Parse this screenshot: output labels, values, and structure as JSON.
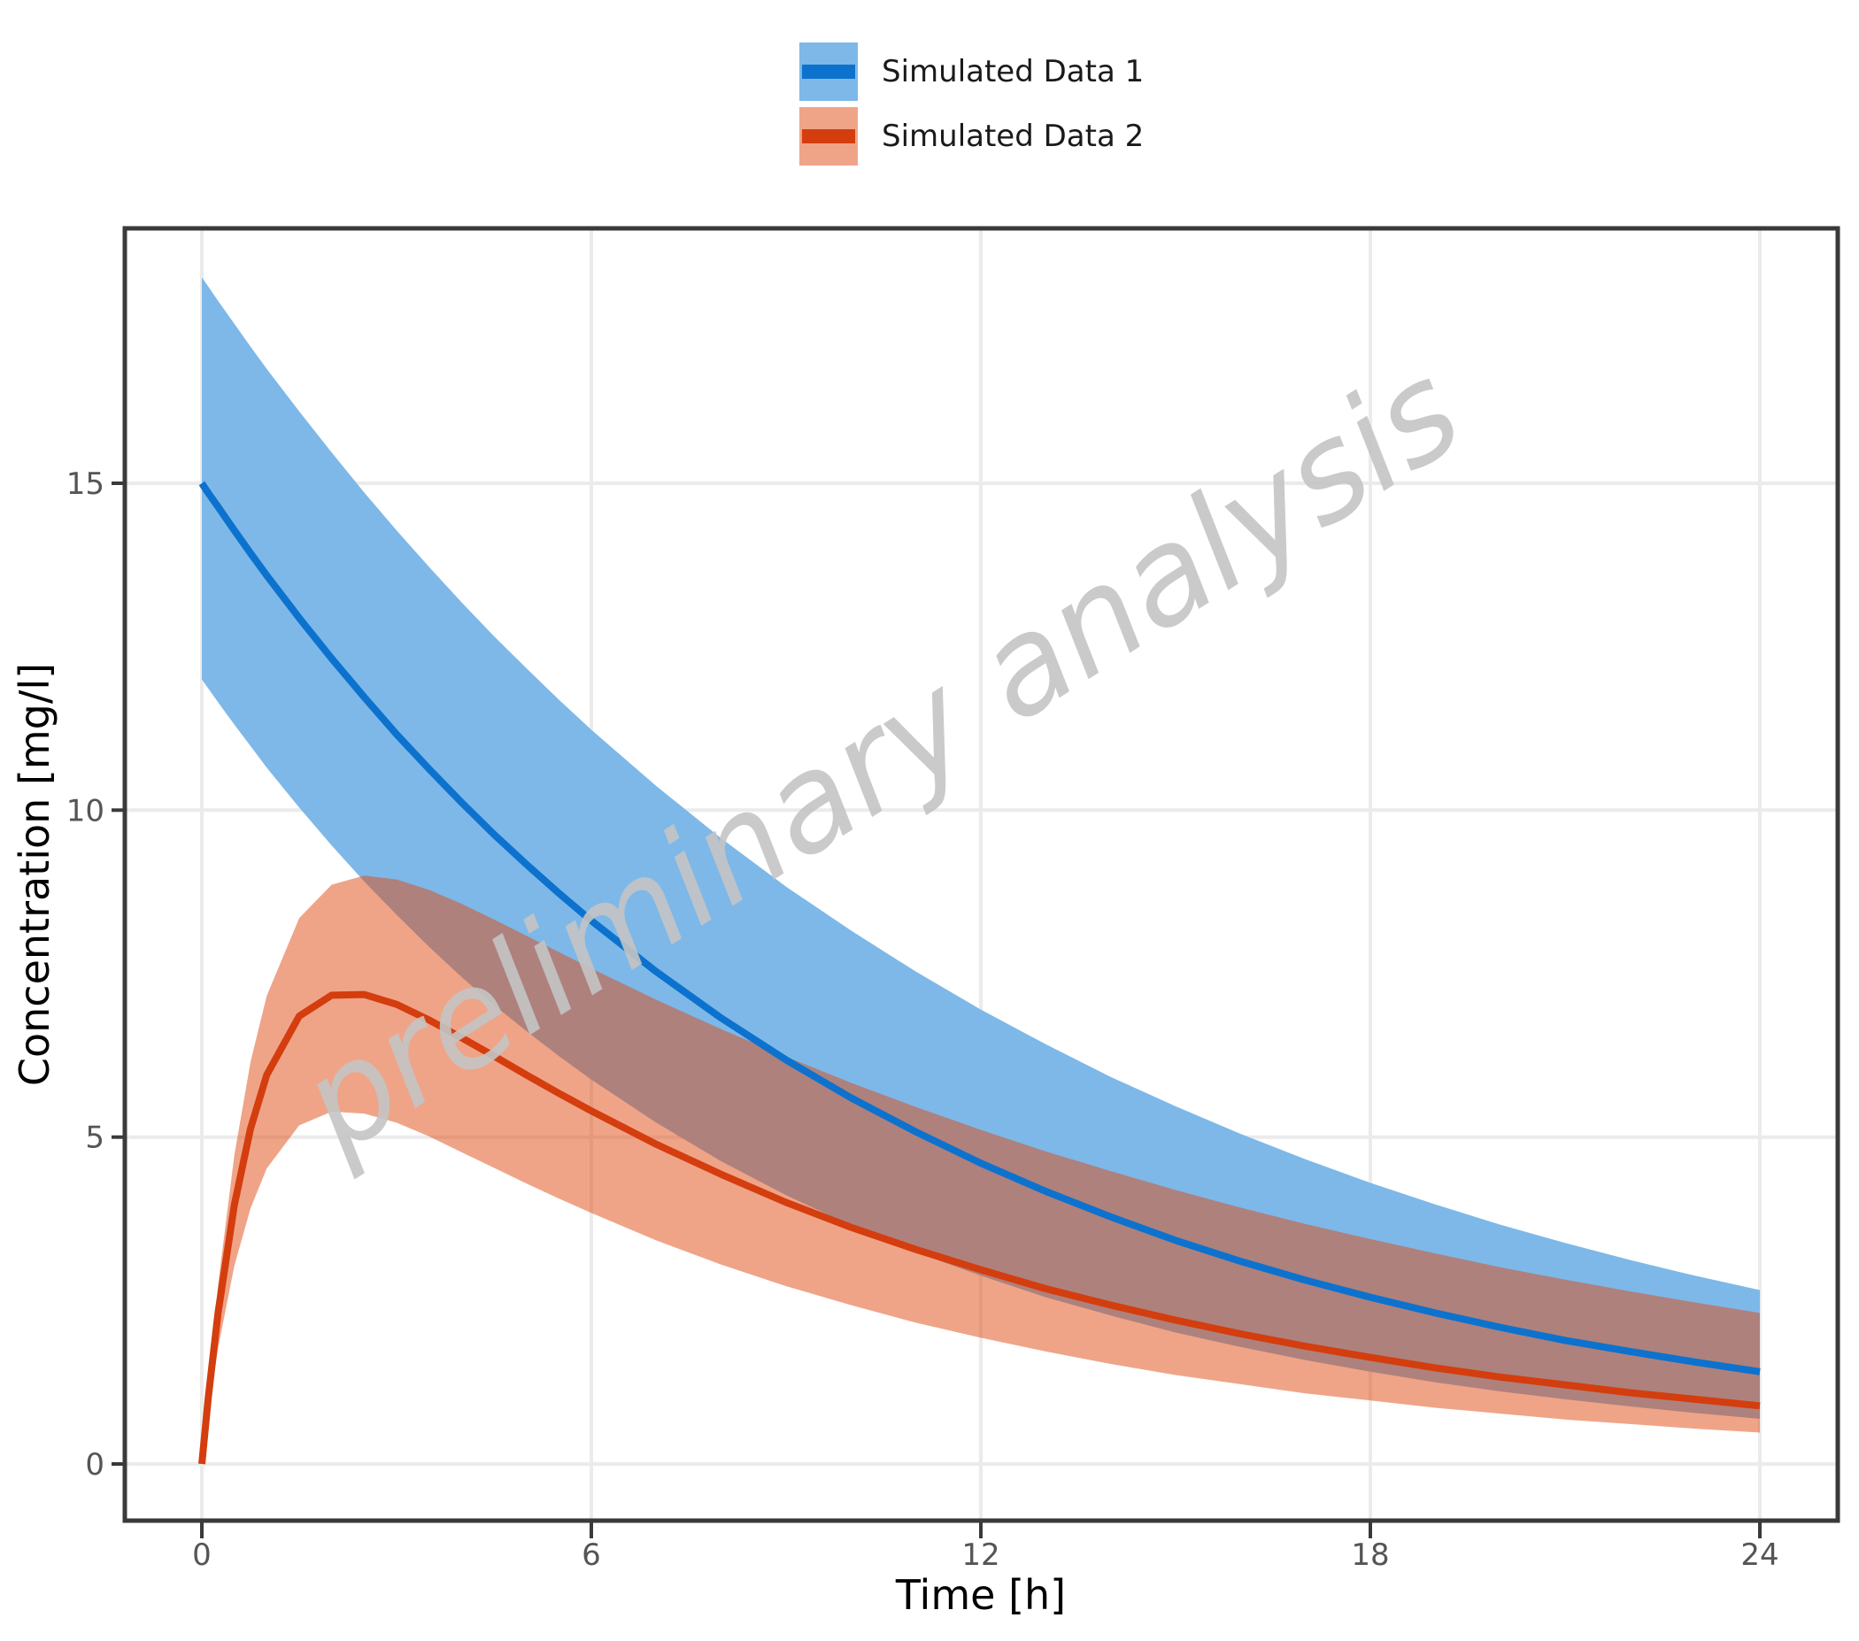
{
  "watermark": "preliminary analysis",
  "legend": {
    "items": [
      {
        "label": "Simulated Data 1",
        "line_color": "#0c72ce",
        "band_color": "#7db8e8"
      },
      {
        "label": "Simulated Data 2",
        "line_color": "#d43d0e",
        "band_color": "#efa488"
      }
    ]
  },
  "chart_data": {
    "type": "line",
    "title": "",
    "xlabel": "Time [h]",
    "ylabel": "Concentration [mg/l]",
    "x_ticks": [
      0,
      6,
      12,
      18,
      24
    ],
    "y_ticks": [
      0,
      5,
      10,
      15
    ],
    "xlim": [
      -1.2,
      25.2
    ],
    "ylim": [
      -0.9,
      18.9
    ],
    "grid": true,
    "legend_position": "top-center",
    "watermark_text": "preliminary analysis",
    "x": [
      0,
      0.1,
      0.25,
      0.5,
      0.75,
      1,
      1.5,
      2,
      2.5,
      3,
      3.5,
      4,
      4.5,
      5,
      5.5,
      6,
      7,
      8,
      9,
      10,
      11,
      12,
      13,
      14,
      15,
      16,
      17,
      18,
      19,
      20,
      21,
      22,
      23,
      24
    ],
    "series": [
      {
        "name": "Simulated Data 1",
        "line_color": "#0c72ce",
        "band_fill": "#7db8e8",
        "band_opacity": 1,
        "mean": [
          15.0,
          14.85,
          14.64,
          14.28,
          13.93,
          13.59,
          12.94,
          12.32,
          11.73,
          11.16,
          10.63,
          10.12,
          9.63,
          9.17,
          8.73,
          8.31,
          7.53,
          6.82,
          6.18,
          5.6,
          5.08,
          4.6,
          4.17,
          3.78,
          3.42,
          3.1,
          2.81,
          2.55,
          2.31,
          2.09,
          1.89,
          1.72,
          1.56,
          1.41
        ],
        "upper": [
          18.15,
          18.01,
          17.79,
          17.44,
          17.09,
          16.75,
          16.1,
          15.47,
          14.86,
          14.28,
          13.72,
          13.18,
          12.66,
          12.17,
          11.69,
          11.23,
          10.37,
          9.57,
          8.83,
          8.16,
          7.53,
          6.95,
          6.42,
          5.92,
          5.47,
          5.05,
          4.66,
          4.3,
          3.97,
          3.66,
          3.38,
          3.12,
          2.88,
          2.66
        ],
        "lower": [
          12.0,
          11.86,
          11.65,
          11.31,
          10.98,
          10.65,
          10.04,
          9.46,
          8.91,
          8.4,
          7.91,
          7.45,
          7.02,
          6.62,
          6.24,
          5.88,
          5.22,
          4.63,
          4.11,
          3.65,
          3.24,
          2.88,
          2.55,
          2.27,
          2.01,
          1.79,
          1.59,
          1.41,
          1.25,
          1.11,
          0.99,
          0.88,
          0.78,
          0.69
        ]
      },
      {
        "name": "Simulated Data 2",
        "line_color": "#d43d0e",
        "band_fill": "rgba(223,73,17,0.5)",
        "band_opacity": 1,
        "mean": [
          0,
          1.02,
          2.31,
          3.96,
          5.13,
          5.95,
          6.85,
          7.17,
          7.18,
          7.03,
          6.79,
          6.52,
          6.24,
          5.95,
          5.67,
          5.4,
          4.89,
          4.43,
          4.0,
          3.62,
          3.28,
          2.97,
          2.68,
          2.43,
          2.2,
          1.99,
          1.8,
          1.63,
          1.47,
          1.33,
          1.21,
          1.09,
          0.99,
          0.89
        ],
        "upper": [
          0,
          1.2,
          2.74,
          4.72,
          6.15,
          7.16,
          8.35,
          8.86,
          9.0,
          8.94,
          8.78,
          8.57,
          8.33,
          8.08,
          7.83,
          7.58,
          7.1,
          6.65,
          6.23,
          5.83,
          5.46,
          5.11,
          4.78,
          4.48,
          4.19,
          3.92,
          3.67,
          3.44,
          3.22,
          3.01,
          2.82,
          2.64,
          2.47,
          2.31
        ],
        "lower": [
          0,
          0.78,
          1.77,
          3.03,
          3.91,
          4.52,
          5.18,
          5.39,
          5.36,
          5.22,
          5.01,
          4.77,
          4.53,
          4.29,
          4.06,
          3.84,
          3.42,
          3.05,
          2.72,
          2.43,
          2.16,
          1.93,
          1.72,
          1.53,
          1.36,
          1.22,
          1.08,
          0.97,
          0.86,
          0.77,
          0.68,
          0.61,
          0.54,
          0.48
        ]
      }
    ],
    "style": {
      "grid_color": "#ebebeb",
      "spine_color": "#3a3a3a",
      "tick_color": "#3a3a3a",
      "tick_label_color": "#555555",
      "axis_label_color": "#000000",
      "watermark_color": "#c4c4c4",
      "panel_bg": "#ffffff"
    }
  }
}
